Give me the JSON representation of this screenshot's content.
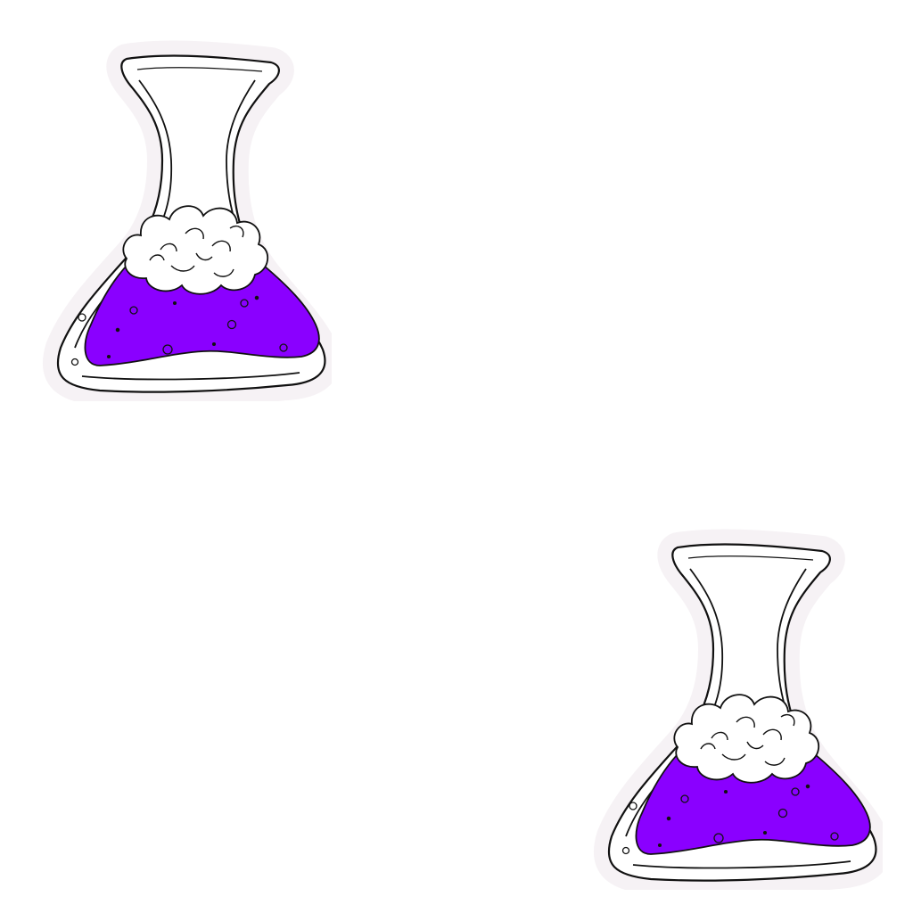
{
  "background_color": "#ffffff",
  "flasks": [
    {
      "icon": "potion-flask-icon",
      "liquid_color": "#8a00ff",
      "foam_color": "#ffffff",
      "outline_color": "#111111",
      "glow_color": "#f6f2f5"
    },
    {
      "icon": "potion-flask-icon",
      "liquid_color": "#8a00ff",
      "foam_color": "#ffffff",
      "outline_color": "#111111",
      "glow_color": "#f6f2f5"
    }
  ]
}
